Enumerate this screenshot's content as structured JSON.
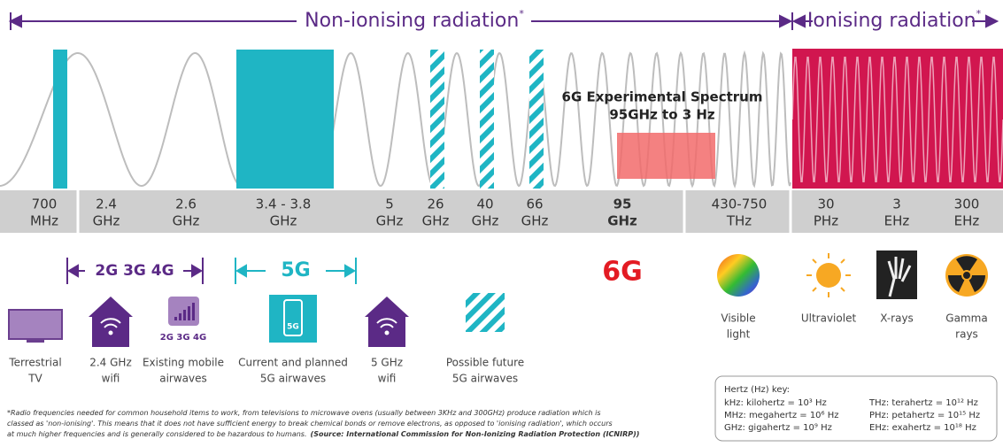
{
  "header": {
    "non_ionising": "Non-ionising radiation",
    "ionising": "Ionising radiation",
    "asterisk": "*"
  },
  "spectrum": {
    "labels": [
      {
        "top": "700",
        "bottom": "MHz"
      },
      {
        "top": "2.4",
        "bottom": "GHz"
      },
      {
        "top": "2.6",
        "bottom": "GHz"
      },
      {
        "top": "3.4 - 3.8",
        "bottom": "GHz"
      },
      {
        "top": "5",
        "bottom": "GHz"
      },
      {
        "top": "26",
        "bottom": "GHz"
      },
      {
        "top": "40",
        "bottom": "GHz"
      },
      {
        "top": "66",
        "bottom": "GHz"
      },
      {
        "top": "95",
        "bottom": "GHz"
      },
      {
        "top": "430-750",
        "bottom": "THz"
      },
      {
        "top": "30",
        "bottom": "PHz"
      },
      {
        "top": "3",
        "bottom": "EHz"
      },
      {
        "top": "300",
        "bottom": "EHz"
      }
    ],
    "experimental": {
      "title": "6G Experimental Spectrum",
      "range": "95GHz to 3 Hz"
    }
  },
  "generations": {
    "legacy": "2G 3G 4G",
    "current": "5G",
    "future": "6G"
  },
  "icons": {
    "mobile_badge": "2G 3G 4G",
    "phone_badge": "5G",
    "labels": [
      [
        "Terrestrial",
        "TV"
      ],
      [
        "2.4 GHz",
        "wifi"
      ],
      [
        "Existing mobile",
        "airwaves"
      ],
      [
        "Current and planned",
        "5G airwaves"
      ],
      [
        "5 GHz",
        "wifi"
      ],
      [
        "Possible future",
        "5G airwaves"
      ],
      [
        "Visible",
        "light"
      ],
      [
        "Ultraviolet"
      ],
      [
        "X-rays"
      ],
      [
        "Gamma",
        "rays"
      ]
    ]
  },
  "footnote": {
    "lines": [
      "*Radio frequencies needed for common household items to work, from televisions to microwave ovens (usually between 3KHz and 300GHz) produce radiation which is",
      "classed as 'non-ionising'. This means that it does not have sufficient energy to break chemical bonds or remove electrons, as opposed to 'ionising radiation', which occurs",
      "at much higher frequencies and is generally considered to be hazardous to humans."
    ],
    "source": "(Source: International Commission for Non-Ionizing Radiation Protection (ICNIRP))"
  },
  "key": {
    "title": "Hertz (Hz) key:",
    "items": [
      "kHz: kilohertz = 10³ Hz",
      "MHz: megahertz = 10⁶ Hz",
      "GHz: gigahertz = 10⁹ Hz",
      "THz: terahertz = 10¹² Hz",
      "PHz: petahertz = 10¹⁵ Hz",
      "EHz: exahertz = 10¹⁸ Hz"
    ]
  }
}
